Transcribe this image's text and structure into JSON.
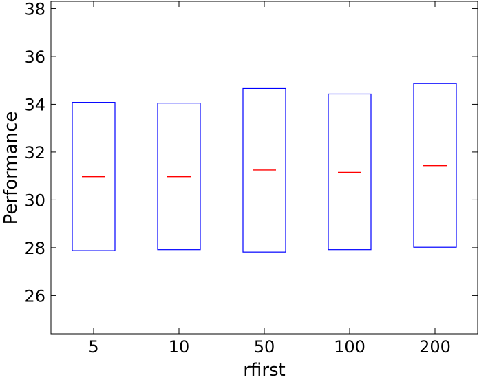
{
  "chart_data": {
    "type": "box",
    "xlabel": "rfirst",
    "ylabel": "Performance",
    "ylim": [
      24.4,
      38.3
    ],
    "yticks": [
      26,
      28,
      30,
      32,
      34,
      36,
      38
    ],
    "categories": [
      "5",
      "10",
      "50",
      "100",
      "200"
    ],
    "boxes": [
      {
        "category": "5",
        "q1": 27.88,
        "median": 30.97,
        "q3": 34.08
      },
      {
        "category": "10",
        "q1": 27.92,
        "median": 30.97,
        "q3": 34.05
      },
      {
        "category": "50",
        "q1": 27.82,
        "median": 31.25,
        "q3": 34.66
      },
      {
        "category": "100",
        "q1": 27.92,
        "median": 31.15,
        "q3": 34.43
      },
      {
        "category": "200",
        "q1": 28.02,
        "median": 31.43,
        "q3": 34.87
      }
    ],
    "colors": {
      "box": "#0000ff",
      "median": "#ff0000",
      "axes": "#000000"
    },
    "grid": false,
    "legend": "none"
  }
}
